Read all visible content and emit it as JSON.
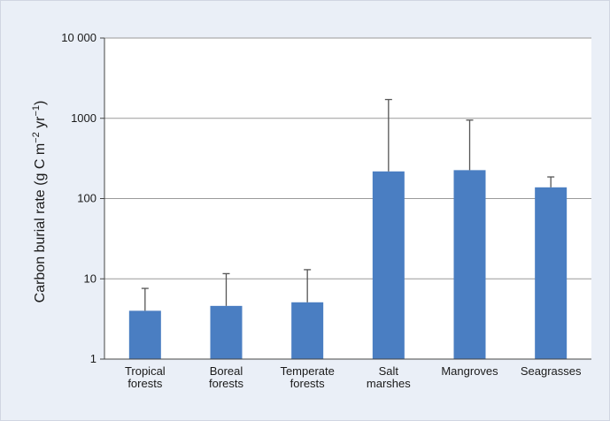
{
  "chart_data": {
    "type": "bar",
    "ylabel_parts": [
      "Carbon burial rate (g C m",
      "−2",
      " yr",
      "−1",
      ")"
    ],
    "ylabel": "Carbon burial rate (g C m−2 yr−1)",
    "yscale": "log",
    "ylim": [
      1,
      10000
    ],
    "yticks": [
      1,
      10,
      100,
      1000,
      10000
    ],
    "ytick_labels": [
      "1",
      "10",
      "100",
      "1000",
      "10 000"
    ],
    "categories": [
      [
        "Tropical",
        "forests"
      ],
      [
        "Boreal",
        "forests"
      ],
      [
        "Temperate",
        "forests"
      ],
      [
        "Salt",
        "marshes"
      ],
      [
        "Mangroves"
      ],
      [
        "Seagrasses"
      ]
    ],
    "values": [
      4,
      4.6,
      5.1,
      218,
      226,
      138
    ],
    "error_upper": [
      7.6,
      11.6,
      13,
      1713,
      949,
      186
    ],
    "grid": true,
    "colors": {
      "bar": "#4a7ec2",
      "panel_bg": "#eaeff7",
      "plot_bg": "#ffffff",
      "grid": "#9a9a9a",
      "error_bar": "#555555"
    }
  }
}
